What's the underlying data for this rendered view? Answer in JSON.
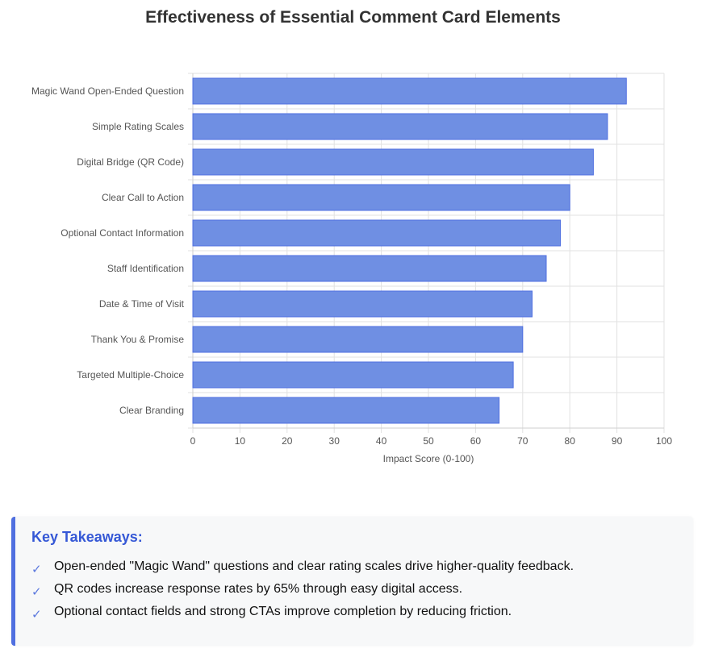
{
  "chart_data": {
    "type": "bar",
    "orientation": "horizontal",
    "title": "Effectiveness of Essential Comment Card Elements",
    "categories": [
      "Magic Wand Open-Ended Question",
      "Simple Rating Scales",
      "Digital Bridge (QR Code)",
      "Clear Call to Action",
      "Optional Contact Information",
      "Staff Identification",
      "Date & Time of Visit",
      "Thank You & Promise",
      "Targeted Multiple-Choice",
      "Clear Branding"
    ],
    "values": [
      92,
      88,
      85,
      80,
      78,
      75,
      72,
      70,
      68,
      65
    ],
    "xlabel": "Impact Score (0-100)",
    "ylabel": "",
    "xlim": [
      0,
      100
    ],
    "xticks": [
      0,
      10,
      20,
      30,
      40,
      50,
      60,
      70,
      80,
      90,
      100
    ],
    "grid": true,
    "bar_color": "#6f8fe3",
    "bar_border_color": "#4f6fe0"
  },
  "takeaways": {
    "heading": "Key Takeaways:",
    "items": [
      "Open-ended \"Magic Wand\" questions and clear rating scales drive higher-quality feedback.",
      "QR codes increase response rates by 65% through easy digital access.",
      "Optional contact fields and strong CTAs improve completion by reducing friction."
    ],
    "check_icon": "✓",
    "accent": "#3558d6"
  }
}
